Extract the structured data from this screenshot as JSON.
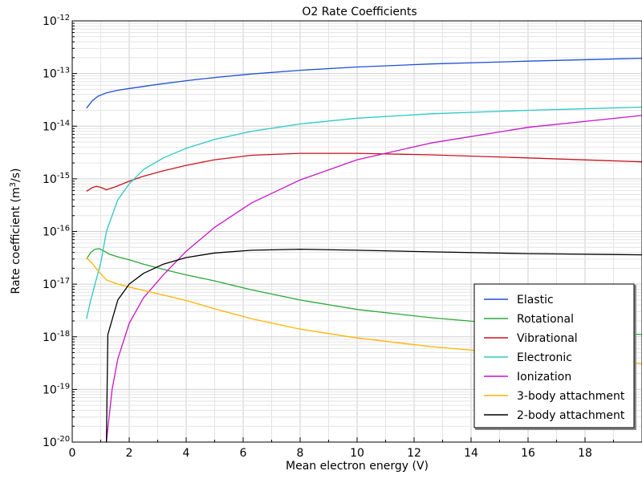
{
  "chart_data": {
    "type": "line",
    "title": "O2 Rate Coefficients",
    "xlabel": "Mean electron energy (V)",
    "ylabel": "Rate coefficient (m3/s)",
    "ylabel_parts": {
      "main": "Rate coefficient (m",
      "sup": "3",
      "end": "/s)"
    },
    "xlim": [
      0,
      20
    ],
    "ylim": [
      1e-20,
      1e-12
    ],
    "yscale": "log",
    "grid": true,
    "legend_position": "bottom-right",
    "x_ticks": [
      0,
      2,
      4,
      6,
      8,
      10,
      12,
      14,
      16,
      18
    ],
    "y_ticks": [
      {
        "value": -12,
        "base": "10",
        "exp": "-12"
      },
      {
        "value": -13,
        "base": "10",
        "exp": "-13"
      },
      {
        "value": -14,
        "base": "10",
        "exp": "-14"
      },
      {
        "value": -15,
        "base": "10",
        "exp": "-15"
      },
      {
        "value": -16,
        "base": "10",
        "exp": "-16"
      },
      {
        "value": -17,
        "base": "10",
        "exp": "-17"
      },
      {
        "value": -18,
        "base": "10",
        "exp": "-18"
      },
      {
        "value": -19,
        "base": "10",
        "exp": "-19"
      },
      {
        "value": -20,
        "base": "10",
        "exp": "-20"
      }
    ],
    "series": [
      {
        "name": "Elastic",
        "color": "#1f4fd8",
        "points": [
          [
            0.5,
            2.2e-14
          ],
          [
            0.7,
            3e-14
          ],
          [
            0.9,
            3.7e-14
          ],
          [
            1.2,
            4.3e-14
          ],
          [
            1.6,
            4.8e-14
          ],
          [
            2,
            5.2e-14
          ],
          [
            3,
            6.2e-14
          ],
          [
            4,
            7.3e-14
          ],
          [
            5,
            8.4e-14
          ],
          [
            6.3,
            9.8e-14
          ],
          [
            8,
            1.15e-13
          ],
          [
            10,
            1.33e-13
          ],
          [
            12.6,
            1.52e-13
          ],
          [
            16,
            1.72e-13
          ],
          [
            20,
            1.95e-13
          ]
        ]
      },
      {
        "name": "Rotational",
        "color": "#2aa836",
        "points": [
          [
            0.5,
            3e-17
          ],
          [
            0.65,
            4e-17
          ],
          [
            0.8,
            4.6e-17
          ],
          [
            0.95,
            4.7e-17
          ],
          [
            1.1,
            4.3e-17
          ],
          [
            1.3,
            3.7e-17
          ],
          [
            1.6,
            3.3e-17
          ],
          [
            2,
            2.9e-17
          ],
          [
            2.5,
            2.4e-17
          ],
          [
            3.2,
            1.9e-17
          ],
          [
            4,
            1.5e-17
          ],
          [
            5,
            1.15e-17
          ],
          [
            6.3,
            7.8e-18
          ],
          [
            8,
            5e-18
          ],
          [
            10,
            3.3e-18
          ],
          [
            12.6,
            2.3e-18
          ],
          [
            16,
            1.6e-18
          ],
          [
            20,
            1.1e-18
          ]
        ]
      },
      {
        "name": "Vibrational",
        "color": "#c8141e",
        "points": [
          [
            0.5,
            5.8e-16
          ],
          [
            0.7,
            6.8e-16
          ],
          [
            0.85,
            7.2e-16
          ],
          [
            1.0,
            6.9e-16
          ],
          [
            1.2,
            6.2e-16
          ],
          [
            1.5,
            7e-16
          ],
          [
            2,
            9e-16
          ],
          [
            2.5,
            1.12e-15
          ],
          [
            3.2,
            1.42e-15
          ],
          [
            4,
            1.8e-15
          ],
          [
            5,
            2.3e-15
          ],
          [
            6.3,
            2.8e-15
          ],
          [
            8,
            3.05e-15
          ],
          [
            10,
            3.05e-15
          ],
          [
            12.6,
            2.85e-15
          ],
          [
            16,
            2.5e-15
          ],
          [
            20,
            2.1e-15
          ]
        ]
      },
      {
        "name": "Electronic",
        "color": "#2ac8c8",
        "points": [
          [
            0.5,
            2.2e-18
          ],
          [
            0.65,
            5e-18
          ],
          [
            0.8,
            1e-17
          ],
          [
            1.0,
            2.5e-17
          ],
          [
            1.2,
            1e-16
          ],
          [
            1.6,
            4e-16
          ],
          [
            2,
            8e-16
          ],
          [
            2.5,
            1.5e-15
          ],
          [
            3.2,
            2.5e-15
          ],
          [
            4,
            3.8e-15
          ],
          [
            5,
            5.6e-15
          ],
          [
            6.3,
            8e-15
          ],
          [
            8,
            1.1e-14
          ],
          [
            10,
            1.42e-14
          ],
          [
            12.6,
            1.72e-14
          ],
          [
            16,
            2e-14
          ],
          [
            20,
            2.3e-14
          ]
        ]
      },
      {
        "name": "Ionization",
        "color": "#c814c8",
        "points": [
          [
            1.2,
            1e-20
          ],
          [
            1.25,
            1.8e-20
          ],
          [
            1.4,
            1e-19
          ],
          [
            1.6,
            3.8e-19
          ],
          [
            2,
            1.8e-18
          ],
          [
            2.5,
            5.5e-18
          ],
          [
            3.2,
            1.5e-17
          ],
          [
            4,
            4.2e-17
          ],
          [
            5,
            1.2e-16
          ],
          [
            6.3,
            3.5e-16
          ],
          [
            8,
            9.5e-16
          ],
          [
            10,
            2.3e-15
          ],
          [
            12.6,
            4.8e-15
          ],
          [
            16,
            9.5e-15
          ],
          [
            20,
            1.6e-14
          ]
        ]
      },
      {
        "name": "3-body attachment",
        "color": "#ffb400",
        "points": [
          [
            0.5,
            3.2e-17
          ],
          [
            0.7,
            2.5e-17
          ],
          [
            0.9,
            1.8e-17
          ],
          [
            1.2,
            1.2e-17
          ],
          [
            1.6,
            1e-17
          ],
          [
            2,
            8.8e-18
          ],
          [
            3.2,
            6.2e-18
          ],
          [
            4,
            4.9e-18
          ],
          [
            5,
            3.4e-18
          ],
          [
            6.3,
            2.2e-18
          ],
          [
            8,
            1.4e-18
          ],
          [
            10,
            9.5e-19
          ],
          [
            12.6,
            6.5e-19
          ],
          [
            16,
            4.5e-19
          ],
          [
            20,
            3.1e-19
          ]
        ]
      },
      {
        "name": "2-body attachment",
        "color": "#000000",
        "points": [
          [
            1.2,
            1e-20
          ],
          [
            1.25,
            1.1e-18
          ],
          [
            1.6,
            5e-18
          ],
          [
            2,
            1e-17
          ],
          [
            2.5,
            1.6e-17
          ],
          [
            3.2,
            2.4e-17
          ],
          [
            4,
            3.2e-17
          ],
          [
            5,
            3.9e-17
          ],
          [
            6.3,
            4.4e-17
          ],
          [
            8,
            4.6e-17
          ],
          [
            10,
            4.4e-17
          ],
          [
            12.6,
            4.1e-17
          ],
          [
            16,
            3.8e-17
          ],
          [
            20,
            3.6e-17
          ]
        ]
      }
    ]
  }
}
